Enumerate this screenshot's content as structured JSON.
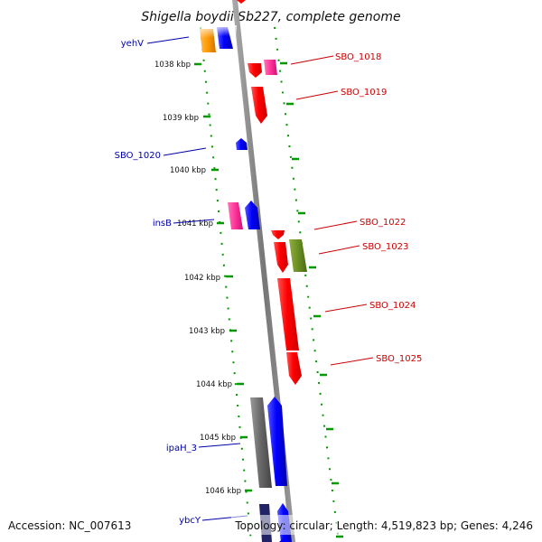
{
  "title": "Shigella boydii Sb227, complete genome",
  "footer": {
    "accession": "Accession: NC_007613",
    "topology": "Topology: circular; Length: 4,519,823 bp; Genes: 4,246"
  },
  "ticks": [
    "1038 kbp",
    "1039 kbp",
    "1040 kbp",
    "1041 kbp",
    "1042 kbp",
    "1043 kbp",
    "1044 kbp",
    "1045 kbp",
    "1046 kbp"
  ],
  "genes": {
    "left": [
      {
        "name": "yehV",
        "label": "yehV"
      },
      {
        "name": "SBO_1020",
        "label": "SBO_1020"
      },
      {
        "name": "insB",
        "label": "insB"
      },
      {
        "name": "ipaH_3",
        "label": "ipaH_3"
      },
      {
        "name": "ybcY",
        "label": "ybcY"
      }
    ],
    "right": [
      {
        "name": "SBO_1018",
        "label": "SBO_1018"
      },
      {
        "name": "SBO_1019",
        "label": "SBO_1019"
      },
      {
        "name": "SBO_1022",
        "label": "SBO_1022"
      },
      {
        "name": "SBO_1023",
        "label": "SBO_1023"
      },
      {
        "name": "SBO_1024",
        "label": "SBO_1024"
      },
      {
        "name": "SBO_1025",
        "label": "SBO_1025"
      }
    ]
  },
  "colors": {
    "forward_strand_label": "#cc0000",
    "reverse_strand_label": "#0000aa",
    "gene_red": "#ff0000",
    "gene_blue": "#0000ff",
    "gene_pink": "#ff3399",
    "gene_orange": "#ff9900",
    "gene_olive": "#6b8e23",
    "gene_gray": "#666666",
    "tick_green": "#009900",
    "backbone": "#888888"
  }
}
